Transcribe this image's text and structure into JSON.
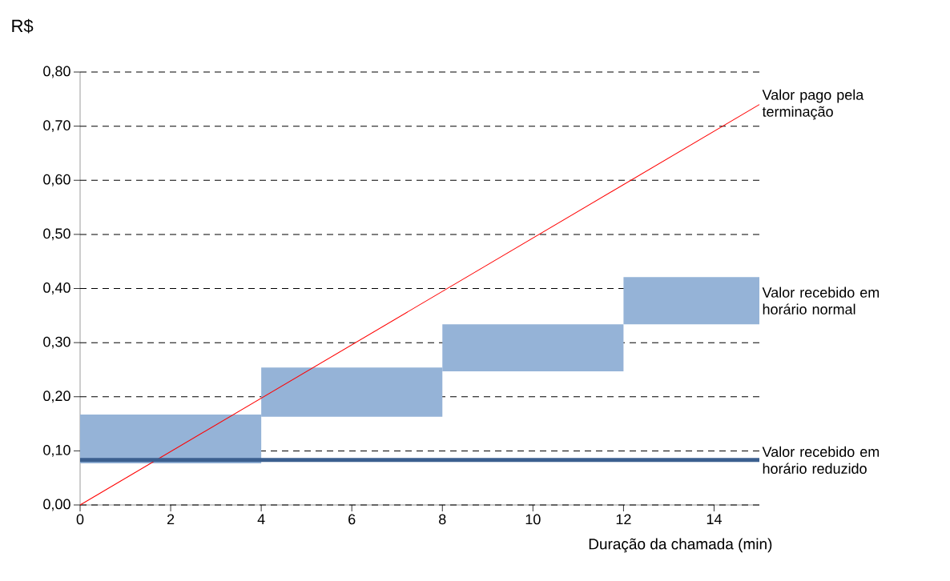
{
  "chart_data": {
    "type": "bar",
    "xlabel": "Duração da chamada (min)",
    "ylabel": "R$",
    "xlim": [
      0,
      15
    ],
    "ylim": [
      0,
      0.8
    ],
    "xticks": [
      0,
      2,
      4,
      6,
      8,
      10,
      12,
      14
    ],
    "yticks": [
      {
        "value": 0,
        "label": "0,00"
      },
      {
        "value": 0.1,
        "label": "0,10"
      },
      {
        "value": 0.2,
        "label": "0,20"
      },
      {
        "value": 0.3,
        "label": "0,30"
      },
      {
        "value": 0.4,
        "label": "0,40"
      },
      {
        "value": 0.5,
        "label": "0,50"
      },
      {
        "value": 0.6,
        "label": "0,60"
      },
      {
        "value": 0.7,
        "label": "0,70"
      },
      {
        "value": 0.8,
        "label": "0,80"
      }
    ],
    "grid": "y",
    "series": [
      {
        "name": "Valor recebido em horário normal",
        "color": "#95b3d7",
        "x": [
          2,
          6,
          10,
          13.5
        ],
        "base": [
          0.077,
          0.163,
          0.247,
          0.334
        ],
        "values": [
          0.09,
          0.091,
          0.087,
          0.087
        ]
      },
      {
        "name": "Valor pago pela terminação",
        "type": "line",
        "color": "#ff0000",
        "x": [
          0,
          15
        ],
        "values": [
          0,
          0.74
        ]
      },
      {
        "name": "Valor recebido em horário reduzido",
        "type": "line",
        "color": "#3b5f8f",
        "x": [
          0,
          15
        ],
        "values": [
          0.083,
          0.083
        ]
      }
    ]
  }
}
